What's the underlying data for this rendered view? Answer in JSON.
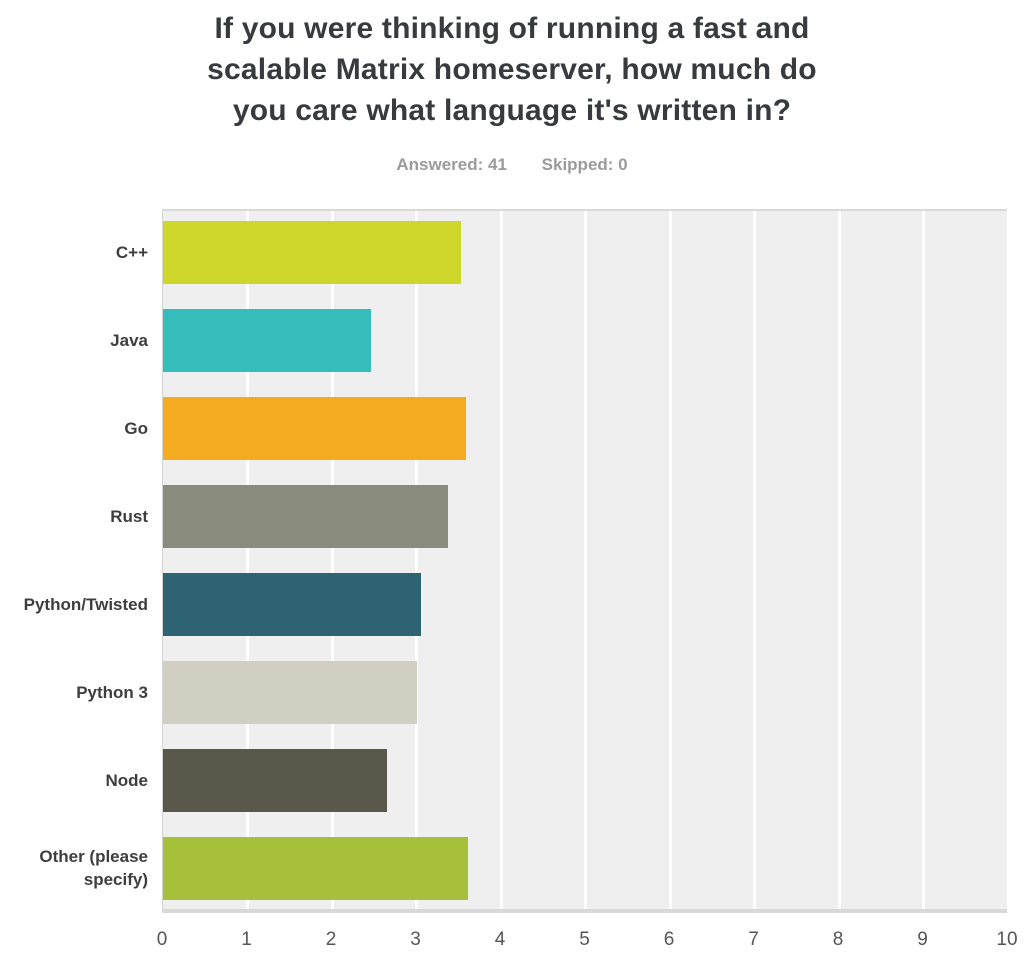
{
  "header": {
    "title": "If you were thinking of running a fast and scalable Matrix homeserver, how much do you care what language it's written in?",
    "title_lines": [
      "If you were thinking of running a fast and",
      "scalable Matrix homeserver, how much do",
      "you care what language it's written in?"
    ],
    "answered_label": "Answered: 41",
    "skipped_label": "Skipped: 0"
  },
  "chart_data": {
    "type": "bar",
    "orientation": "horizontal",
    "title": "If you were thinking of running a fast and scalable Matrix homeserver, how much do you care what language it's written in?",
    "answered": 41,
    "skipped": 0,
    "categories": [
      "C++",
      "Java",
      "Go",
      "Rust",
      "Python/Twisted",
      "Python 3",
      "Node",
      "Other (please specify)"
    ],
    "values": [
      3.53,
      2.46,
      3.58,
      3.37,
      3.05,
      3.0,
      2.65,
      3.61
    ],
    "colors": [
      "#cdd62b",
      "#35bdbc",
      "#f5ab21",
      "#898c7c",
      "#2e6372",
      "#d0cfc1",
      "#59584a",
      "#a6c03c"
    ],
    "xlabel": "",
    "ylabel": "",
    "xlim": [
      0,
      10
    ],
    "xticks": [
      0,
      1,
      2,
      3,
      4,
      5,
      6,
      7,
      8,
      9,
      10
    ],
    "grid": true,
    "legend": false,
    "plot_background": "#f0efef",
    "gridline_color": "#ffffff"
  },
  "theme": {
    "title_color": "#373a3e",
    "stats_color": "#9b9b9b",
    "category_label_color": "#3e3e3e",
    "tick_label_color": "#55565a"
  }
}
